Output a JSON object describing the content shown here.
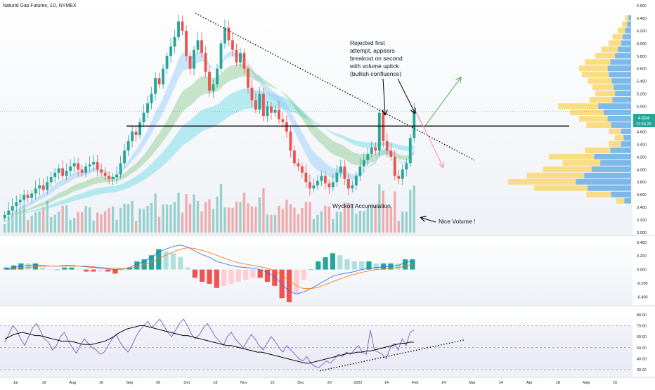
{
  "header": {
    "symbol_title": "Natural Gas Futures, 1D, NYMEX"
  },
  "price_label": {
    "value": "4.924",
    "countdown": "22:55:26"
  },
  "annotations": {
    "rejected": [
      "Rejected first",
      "attempt, appears",
      "breakout on second",
      "with volume uptick",
      "(bullish confluence)"
    ],
    "wyckoff": "Wyckoff Accumulation",
    "nice_volume": "Nice Volume !"
  },
  "colors": {
    "up": "#26a69a",
    "down": "#ef5350",
    "trend_black": "#000000",
    "macd_line": "#2962ff",
    "signal_line": "#ff6d00",
    "rsi_line": "#7e57c2",
    "vp_yellow": "#f9d976",
    "vp_blue": "#6fb2e8",
    "arrow_green": "#4caf50",
    "arrow_red": "#f48fb1"
  },
  "chart_data": [
    {
      "type": "candlestick",
      "title": "Natural Gas Futures, 1D, NYMEX",
      "ylim": [
        3.0,
        6.6
      ],
      "y_ticks": [
        "6.600",
        "6.400",
        "6.200",
        "6.000",
        "5.800",
        "5.600",
        "5.400",
        "5.200",
        "5.000",
        "4.800",
        "4.600",
        "4.400",
        "4.200",
        "4.000",
        "3.800",
        "3.600",
        "3.400",
        "3.200",
        "3.000"
      ],
      "x_ticks": [
        "Jul",
        "19",
        "Aug",
        "16",
        "Sep",
        "20",
        "Oct",
        "18",
        "Nov",
        "15",
        "Dec",
        "20",
        "2022",
        "14",
        "Feb",
        "14",
        "Mar",
        "14",
        "Apr",
        "18",
        "May",
        "16"
      ],
      "last_price": 4.924,
      "horizontal_level": 4.69,
      "downtrend_line": {
        "from_price": 6.48,
        "to_price": 4.15
      },
      "projection_up_target": 5.45,
      "projection_down_target": 4.05,
      "closes": [
        3.28,
        3.35,
        3.42,
        3.48,
        3.52,
        3.6,
        3.55,
        3.62,
        3.7,
        3.75,
        3.68,
        3.8,
        3.88,
        3.95,
        4.02,
        3.9,
        3.98,
        4.05,
        4.1,
        4.0,
        3.95,
        4.05,
        4.08,
        4.12,
        4.0,
        3.95,
        3.9,
        3.85,
        3.88,
        3.92,
        4.1,
        4.3,
        4.45,
        4.6,
        4.55,
        4.75,
        4.9,
        5.05,
        5.2,
        5.45,
        5.35,
        5.6,
        5.8,
        5.95,
        6.1,
        6.35,
        6.2,
        5.8,
        5.6,
        5.9,
        6.05,
        5.85,
        5.55,
        5.25,
        5.35,
        5.6,
        6.0,
        6.25,
        6.05,
        5.9,
        5.7,
        5.85,
        5.6,
        5.3,
        5.1,
        4.95,
        5.2,
        4.85,
        5.0,
        4.9,
        4.95,
        4.8,
        4.75,
        4.6,
        4.3,
        4.1,
        4.05,
        3.95,
        3.8,
        3.7,
        3.75,
        3.82,
        3.9,
        3.78,
        3.72,
        3.8,
        3.95,
        4.05,
        3.85,
        3.7,
        3.75,
        3.9,
        4.05,
        4.15,
        4.25,
        4.35,
        4.3,
        4.9,
        4.45,
        4.3,
        4.2,
        3.9,
        3.85,
        4.0,
        4.1,
        4.5,
        4.924
      ],
      "volume_profile": [
        {
          "price": 6.4,
          "volume": 8
        },
        {
          "price": 6.3,
          "volume": 12
        },
        {
          "price": 6.2,
          "volume": 18
        },
        {
          "price": 6.1,
          "volume": 25
        },
        {
          "price": 6.0,
          "volume": 30
        },
        {
          "price": 5.9,
          "volume": 40
        },
        {
          "price": 5.8,
          "volume": 48
        },
        {
          "price": 5.7,
          "volume": 62
        },
        {
          "price": 5.6,
          "volume": 70
        },
        {
          "price": 5.5,
          "volume": 66
        },
        {
          "price": 5.4,
          "volume": 58
        },
        {
          "price": 5.3,
          "volume": 52
        },
        {
          "price": 5.2,
          "volume": 48
        },
        {
          "price": 5.1,
          "volume": 56
        },
        {
          "price": 5.0,
          "volume": 98
        },
        {
          "price": 4.9,
          "volume": 82
        },
        {
          "price": 4.8,
          "volume": 70
        },
        {
          "price": 4.7,
          "volume": 60
        },
        {
          "price": 4.6,
          "volume": 30
        },
        {
          "price": 4.5,
          "volume": 22
        },
        {
          "price": 4.4,
          "volume": 30
        },
        {
          "price": 4.3,
          "volume": 62
        },
        {
          "price": 4.2,
          "volume": 110
        },
        {
          "price": 4.1,
          "volume": 92
        },
        {
          "price": 4.0,
          "volume": 118
        },
        {
          "price": 3.9,
          "volume": 140
        },
        {
          "price": 3.8,
          "volume": 165
        },
        {
          "price": 3.7,
          "volume": 130
        },
        {
          "price": 3.6,
          "volume": 60
        },
        {
          "price": 3.5,
          "volume": 20
        }
      ]
    },
    {
      "type": "line",
      "title": "MACD",
      "ylim": [
        -0.5,
        0.45
      ],
      "y_ticks": [
        "0.400",
        "0.200",
        "0.000",
        "-0.200",
        "-0.400"
      ],
      "series": [
        {
          "values": [
            0.01,
            0.03,
            0.05,
            0.06,
            0.07,
            0.06,
            0.05,
            0.05,
            0.06,
            0.06,
            0.05,
            0.04,
            0.03,
            0.02,
            0.01,
            0.0,
            0.01,
            0.03,
            0.08,
            0.12,
            0.18,
            0.26,
            0.3,
            0.34,
            0.36,
            0.33,
            0.27,
            0.22,
            0.18,
            0.12,
            0.09,
            0.06,
            0.04,
            0.03,
            0.02,
            0.0,
            -0.04,
            -0.1,
            -0.22,
            -0.32,
            -0.36,
            -0.33,
            -0.28,
            -0.22,
            -0.16,
            -0.1,
            -0.07,
            -0.05,
            -0.03,
            0.0,
            0.02,
            0.03,
            0.04,
            0.05,
            0.06,
            0.1,
            0.13
          ]
        },
        {
          "values": [
            0.0,
            0.01,
            0.02,
            0.03,
            0.04,
            0.05,
            0.05,
            0.05,
            0.05,
            0.05,
            0.05,
            0.05,
            0.04,
            0.03,
            0.02,
            0.02,
            0.01,
            0.02,
            0.04,
            0.07,
            0.11,
            0.16,
            0.21,
            0.26,
            0.3,
            0.32,
            0.31,
            0.28,
            0.25,
            0.21,
            0.17,
            0.13,
            0.1,
            0.08,
            0.06,
            0.04,
            0.02,
            -0.02,
            -0.08,
            -0.16,
            -0.24,
            -0.28,
            -0.28,
            -0.26,
            -0.22,
            -0.18,
            -0.14,
            -0.1,
            -0.07,
            -0.04,
            -0.02,
            0.0,
            0.01,
            0.02,
            0.03,
            0.05,
            0.08
          ]
        }
      ]
    },
    {
      "type": "line",
      "title": "RSI",
      "ylim": [
        25,
        85
      ],
      "y_ticks": [
        "80.00",
        "70.00",
        "60.00",
        "50.00",
        "40.00",
        "30.00"
      ],
      "levels": [
        70,
        50,
        30
      ],
      "support_trendline": {
        "from": 29,
        "to": 57
      },
      "series": [
        {
          "values": [
            55,
            62,
            70,
            66,
            58,
            52,
            60,
            68,
            72,
            65,
            58,
            55,
            48,
            52,
            60,
            64,
            56,
            50,
            45,
            52,
            58,
            54,
            50,
            48,
            44,
            46,
            52,
            58,
            62,
            55,
            50,
            46,
            52,
            60,
            66,
            70,
            74,
            68,
            72,
            76,
            70,
            64,
            60,
            66,
            72,
            76,
            70,
            62,
            58,
            62,
            68,
            72,
            66,
            60,
            56,
            52,
            60,
            64,
            58,
            54,
            50,
            56,
            62,
            58,
            52,
            48,
            54,
            60,
            56,
            50,
            46,
            52,
            48,
            44,
            40,
            38,
            42,
            36,
            33,
            32,
            35,
            38,
            36,
            40,
            44,
            42,
            46,
            44,
            48,
            52,
            46,
            44,
            66,
            48,
            46,
            44,
            40,
            50,
            54,
            48,
            58,
            52,
            64,
            66
          ]
        },
        {
          "values": [
            58,
            60,
            62,
            63,
            64,
            63,
            62,
            61,
            61,
            60,
            59,
            58,
            57,
            56,
            56,
            56,
            55,
            54,
            53,
            53,
            53,
            54,
            55,
            56,
            58,
            60,
            63,
            65,
            67,
            68,
            69,
            70,
            70,
            69,
            68,
            67,
            66,
            65,
            64,
            63,
            62,
            61,
            61,
            60,
            59,
            58,
            57,
            56,
            55,
            54,
            53,
            52,
            52,
            51,
            50,
            49,
            48,
            47,
            46,
            46,
            45,
            44,
            43,
            42,
            41,
            40,
            39,
            38,
            37,
            36,
            36,
            37,
            38,
            39,
            40,
            41,
            42,
            43,
            44,
            45,
            45,
            46,
            46,
            47,
            47,
            48,
            49,
            50,
            51,
            52,
            53,
            54,
            54,
            55,
            55
          ]
        }
      ]
    }
  ]
}
